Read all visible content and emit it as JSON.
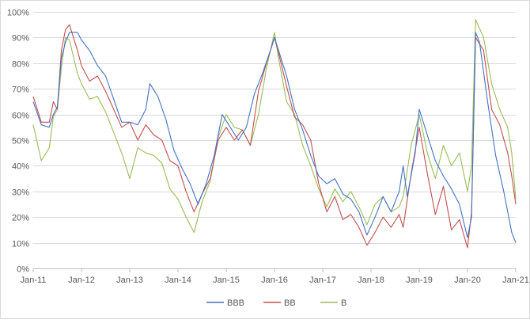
{
  "chart_data": {
    "type": "line",
    "title": "",
    "xlabel": "",
    "ylabel": "",
    "ylim": [
      0,
      100
    ],
    "y_ticks": [
      "0%",
      "10%",
      "20%",
      "30%",
      "40%",
      "50%",
      "60%",
      "70%",
      "80%",
      "90%",
      "100%"
    ],
    "x_ticks": [
      "Jan-11",
      "Jan-12",
      "Jan-13",
      "Jan-14",
      "Jan-15",
      "Jan-16",
      "Jan-17",
      "Jan-18",
      "Jan-19",
      "Jan-20",
      "Jan-21"
    ],
    "xlim": [
      "2011-01",
      "2021-01"
    ],
    "grid": "horizontal",
    "legend": "bottom",
    "series": [
      {
        "name": "BBB",
        "color": "#4472c4",
        "points": [
          [
            "2011-01",
            65
          ],
          [
            "2011-03",
            56
          ],
          [
            "2011-05",
            55
          ],
          [
            "2011-06",
            60
          ],
          [
            "2011-07",
            63
          ],
          [
            "2011-08",
            82
          ],
          [
            "2011-09",
            88
          ],
          [
            "2011-10",
            92
          ],
          [
            "2011-12",
            92
          ],
          [
            "2012-01",
            89
          ],
          [
            "2012-03",
            85
          ],
          [
            "2012-05",
            79
          ],
          [
            "2012-07",
            75
          ],
          [
            "2012-09",
            66
          ],
          [
            "2012-11",
            57
          ],
          [
            "2013-01",
            57
          ],
          [
            "2013-03",
            56
          ],
          [
            "2013-05",
            62
          ],
          [
            "2013-06",
            72
          ],
          [
            "2013-08",
            67
          ],
          [
            "2013-10",
            58
          ],
          [
            "2013-12",
            46
          ],
          [
            "2014-02",
            39
          ],
          [
            "2014-04",
            33
          ],
          [
            "2014-06",
            25
          ],
          [
            "2014-08",
            33
          ],
          [
            "2014-10",
            44
          ],
          [
            "2014-12",
            60
          ],
          [
            "2015-02",
            55
          ],
          [
            "2015-04",
            50
          ],
          [
            "2015-06",
            55
          ],
          [
            "2015-08",
            68
          ],
          [
            "2015-10",
            76
          ],
          [
            "2015-12",
            85
          ],
          [
            "2016-01",
            90
          ],
          [
            "2016-02",
            85
          ],
          [
            "2016-04",
            75
          ],
          [
            "2016-06",
            62
          ],
          [
            "2016-08",
            54
          ],
          [
            "2016-10",
            44
          ],
          [
            "2016-12",
            36
          ],
          [
            "2017-02",
            33
          ],
          [
            "2017-04",
            35
          ],
          [
            "2017-06",
            29
          ],
          [
            "2017-08",
            27
          ],
          [
            "2017-10",
            22
          ],
          [
            "2017-12",
            13
          ],
          [
            "2018-02",
            20
          ],
          [
            "2018-04",
            28
          ],
          [
            "2018-06",
            22
          ],
          [
            "2018-08",
            30
          ],
          [
            "2018-09",
            40
          ],
          [
            "2018-10",
            28
          ],
          [
            "2018-12",
            45
          ],
          [
            "2019-01",
            62
          ],
          [
            "2019-03",
            52
          ],
          [
            "2019-05",
            42
          ],
          [
            "2019-07",
            36
          ],
          [
            "2019-09",
            31
          ],
          [
            "2019-11",
            25
          ],
          [
            "2020-01",
            12
          ],
          [
            "2020-02",
            20
          ],
          [
            "2020-03",
            92
          ],
          [
            "2020-04",
            88
          ],
          [
            "2020-06",
            65
          ],
          [
            "2020-08",
            44
          ],
          [
            "2020-10",
            30
          ],
          [
            "2020-12",
            14
          ],
          [
            "2021-01",
            10
          ]
        ]
      },
      {
        "name": "BB",
        "color": "#c0504d",
        "points": [
          [
            "2011-01",
            67
          ],
          [
            "2011-03",
            57
          ],
          [
            "2011-05",
            57
          ],
          [
            "2011-06",
            65
          ],
          [
            "2011-07",
            62
          ],
          [
            "2011-08",
            85
          ],
          [
            "2011-09",
            93
          ],
          [
            "2011-10",
            95
          ],
          [
            "2011-12",
            85
          ],
          [
            "2012-01",
            79
          ],
          [
            "2012-03",
            73
          ],
          [
            "2012-05",
            75
          ],
          [
            "2012-07",
            69
          ],
          [
            "2012-09",
            62
          ],
          [
            "2012-11",
            55
          ],
          [
            "2013-01",
            57
          ],
          [
            "2013-03",
            50
          ],
          [
            "2013-05",
            56
          ],
          [
            "2013-07",
            52
          ],
          [
            "2013-09",
            50
          ],
          [
            "2013-11",
            42
          ],
          [
            "2014-01",
            40
          ],
          [
            "2014-03",
            30
          ],
          [
            "2014-05",
            22
          ],
          [
            "2014-07",
            29
          ],
          [
            "2014-09",
            35
          ],
          [
            "2014-11",
            50
          ],
          [
            "2015-01",
            55
          ],
          [
            "2015-03",
            50
          ],
          [
            "2015-05",
            54
          ],
          [
            "2015-07",
            48
          ],
          [
            "2015-09",
            69
          ],
          [
            "2015-11",
            80
          ],
          [
            "2016-01",
            90
          ],
          [
            "2016-02",
            84
          ],
          [
            "2016-04",
            71
          ],
          [
            "2016-06",
            59
          ],
          [
            "2016-08",
            56
          ],
          [
            "2016-10",
            50
          ],
          [
            "2016-12",
            33
          ],
          [
            "2017-02",
            22
          ],
          [
            "2017-04",
            28
          ],
          [
            "2017-06",
            19
          ],
          [
            "2017-08",
            21
          ],
          [
            "2017-10",
            16
          ],
          [
            "2017-12",
            9
          ],
          [
            "2018-02",
            14
          ],
          [
            "2018-04",
            20
          ],
          [
            "2018-06",
            16
          ],
          [
            "2018-08",
            21
          ],
          [
            "2018-09",
            16
          ],
          [
            "2018-11",
            37
          ],
          [
            "2019-01",
            55
          ],
          [
            "2019-03",
            37
          ],
          [
            "2019-05",
            21
          ],
          [
            "2019-07",
            32
          ],
          [
            "2019-09",
            15
          ],
          [
            "2019-11",
            19
          ],
          [
            "2020-01",
            8
          ],
          [
            "2020-02",
            22
          ],
          [
            "2020-03",
            90
          ],
          [
            "2020-05",
            85
          ],
          [
            "2020-07",
            62
          ],
          [
            "2020-09",
            56
          ],
          [
            "2020-11",
            45
          ],
          [
            "2020-12",
            36
          ],
          [
            "2021-01",
            25
          ]
        ]
      },
      {
        "name": "B",
        "color": "#9bbb59",
        "points": [
          [
            "2011-01",
            56
          ],
          [
            "2011-03",
            42
          ],
          [
            "2011-05",
            47
          ],
          [
            "2011-06",
            59
          ],
          [
            "2011-07",
            62
          ],
          [
            "2011-08",
            78
          ],
          [
            "2011-09",
            90
          ],
          [
            "2011-10",
            89
          ],
          [
            "2011-12",
            76
          ],
          [
            "2012-01",
            72
          ],
          [
            "2012-03",
            66
          ],
          [
            "2012-05",
            67
          ],
          [
            "2012-07",
            61
          ],
          [
            "2012-09",
            53
          ],
          [
            "2012-11",
            45
          ],
          [
            "2013-01",
            35
          ],
          [
            "2013-03",
            47
          ],
          [
            "2013-05",
            45
          ],
          [
            "2013-07",
            44
          ],
          [
            "2013-09",
            41
          ],
          [
            "2013-11",
            31
          ],
          [
            "2014-01",
            27
          ],
          [
            "2014-03",
            20
          ],
          [
            "2014-05",
            14
          ],
          [
            "2014-07",
            26
          ],
          [
            "2014-09",
            34
          ],
          [
            "2014-11",
            51
          ],
          [
            "2015-01",
            60
          ],
          [
            "2015-03",
            55
          ],
          [
            "2015-05",
            54
          ],
          [
            "2015-07",
            48
          ],
          [
            "2015-09",
            60
          ],
          [
            "2015-11",
            78
          ],
          [
            "2016-01",
            92
          ],
          [
            "2016-02",
            82
          ],
          [
            "2016-04",
            65
          ],
          [
            "2016-06",
            60
          ],
          [
            "2016-08",
            48
          ],
          [
            "2016-10",
            40
          ],
          [
            "2016-12",
            31
          ],
          [
            "2017-02",
            24
          ],
          [
            "2017-04",
            31
          ],
          [
            "2017-06",
            26
          ],
          [
            "2017-08",
            30
          ],
          [
            "2017-10",
            24
          ],
          [
            "2017-12",
            17
          ],
          [
            "2018-02",
            25
          ],
          [
            "2018-04",
            28
          ],
          [
            "2018-06",
            22
          ],
          [
            "2018-08",
            24
          ],
          [
            "2018-09",
            28
          ],
          [
            "2018-11",
            48
          ],
          [
            "2019-01",
            60
          ],
          [
            "2019-03",
            45
          ],
          [
            "2019-05",
            35
          ],
          [
            "2019-07",
            48
          ],
          [
            "2019-09",
            40
          ],
          [
            "2019-11",
            45
          ],
          [
            "2020-01",
            30
          ],
          [
            "2020-02",
            40
          ],
          [
            "2020-03",
            97
          ],
          [
            "2020-05",
            90
          ],
          [
            "2020-07",
            72
          ],
          [
            "2020-09",
            62
          ],
          [
            "2020-11",
            55
          ],
          [
            "2020-12",
            45
          ],
          [
            "2021-01",
            27
          ]
        ]
      }
    ]
  }
}
